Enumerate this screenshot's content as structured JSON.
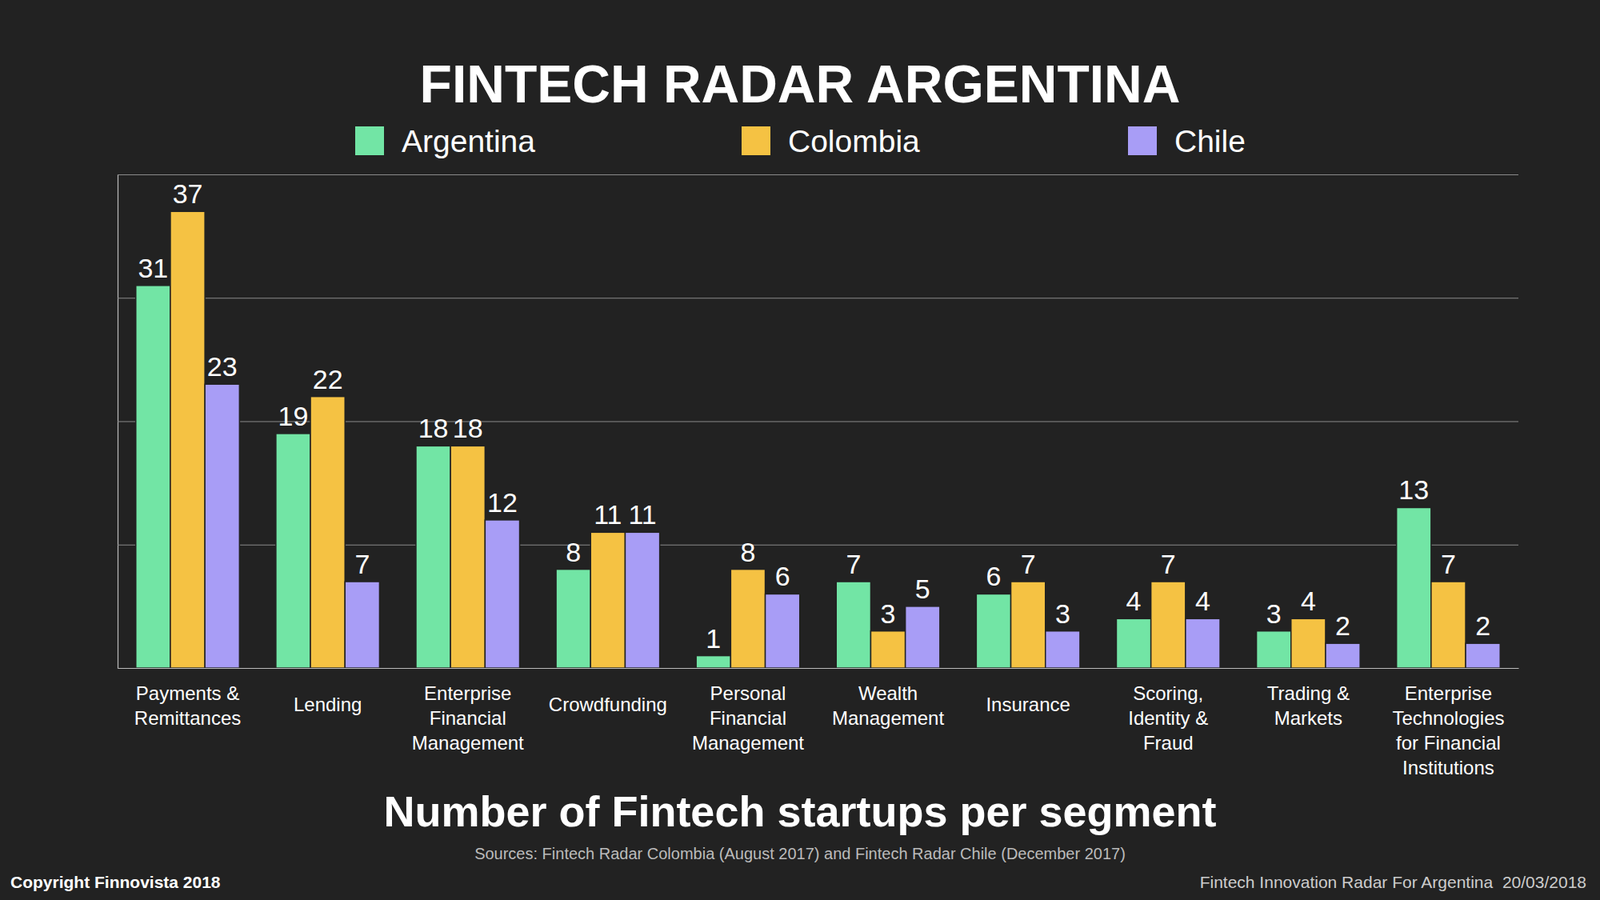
{
  "chart_data": {
    "type": "bar",
    "title": "FINTECH RADAR ARGENTINA",
    "subtitle": "Number of Fintech startups per segment",
    "annotations": [
      "Sources: Fintech Radar Colombia (August 2017) and Fintech Radar Chile (December 2017)",
      "Copyright Finnovista 2018",
      "Fintech Innovation Radar For Argentina  20/03/2018"
    ],
    "categories": [
      "Payments & Remittances",
      "Lending",
      "Enterprise Financial Management",
      "Crowdfunding",
      "Personal Financial Management",
      "Wealth Management",
      "Insurance",
      "Scoring, Identity & Fraud",
      "Trading & Markets",
      "Enterprise Technologies for Financial Institutions"
    ],
    "series": [
      {
        "name": "Argentina",
        "color": "#72e5a5",
        "values": [
          31,
          19,
          18,
          8,
          1,
          7,
          6,
          4,
          3,
          13
        ]
      },
      {
        "name": "Colombia",
        "color": "#f5c243",
        "values": [
          37,
          22,
          18,
          11,
          8,
          3,
          7,
          7,
          4,
          7
        ]
      },
      {
        "name": "Chile",
        "color": "#a89df6",
        "values": [
          23,
          7,
          12,
          11,
          6,
          5,
          3,
          4,
          2,
          2
        ]
      }
    ],
    "ylim": [
      0,
      40
    ],
    "yticks": [
      0,
      10,
      20,
      30,
      40
    ],
    "grid": true,
    "legend": "top",
    "data_labels": true,
    "tick_labels": false
  }
}
